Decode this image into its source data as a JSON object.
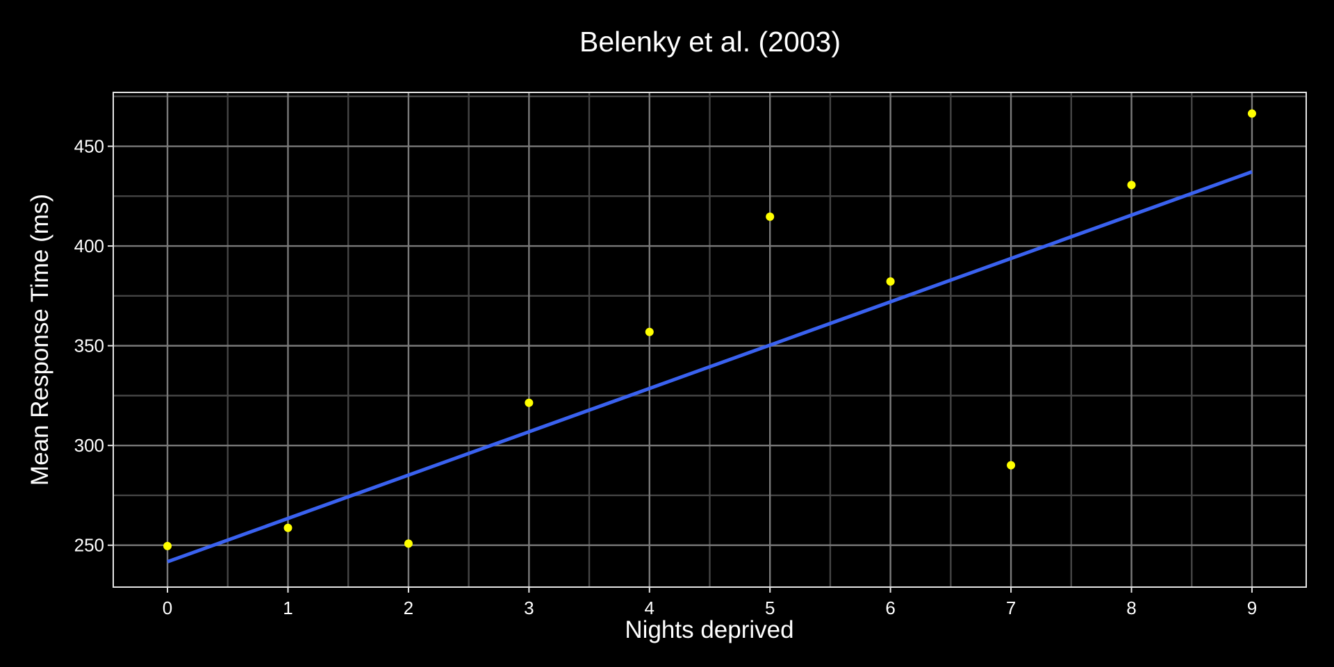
{
  "chart_data": {
    "type": "scatter",
    "title": "Belenky et al. (2003)",
    "xlabel": "Nights deprived",
    "ylabel": "Mean Response Time (ms)",
    "xlim": [
      -0.45,
      9.45
    ],
    "ylim": [
      229,
      477
    ],
    "x_ticks": [
      0,
      1,
      2,
      3,
      4,
      5,
      6,
      7,
      8,
      9
    ],
    "y_ticks": [
      250,
      300,
      350,
      400,
      450
    ],
    "grid": true,
    "points": [
      {
        "x": 0,
        "y": 249.6
      },
      {
        "x": 1,
        "y": 258.7
      },
      {
        "x": 2,
        "y": 250.8
      },
      {
        "x": 3,
        "y": 321.4
      },
      {
        "x": 4,
        "y": 356.9
      },
      {
        "x": 5,
        "y": 414.7
      },
      {
        "x": 6,
        "y": 382.2
      },
      {
        "x": 7,
        "y": 290.1
      },
      {
        "x": 8,
        "y": 430.6
      },
      {
        "x": 9,
        "y": 466.4
      }
    ],
    "fit_line": {
      "x": [
        0,
        9
      ],
      "y": [
        241.7,
        437.2
      ]
    },
    "colors": {
      "background": "#000000",
      "points": "#ffff00",
      "fit_line": "#3a62f0",
      "text": "#ffffff"
    }
  }
}
